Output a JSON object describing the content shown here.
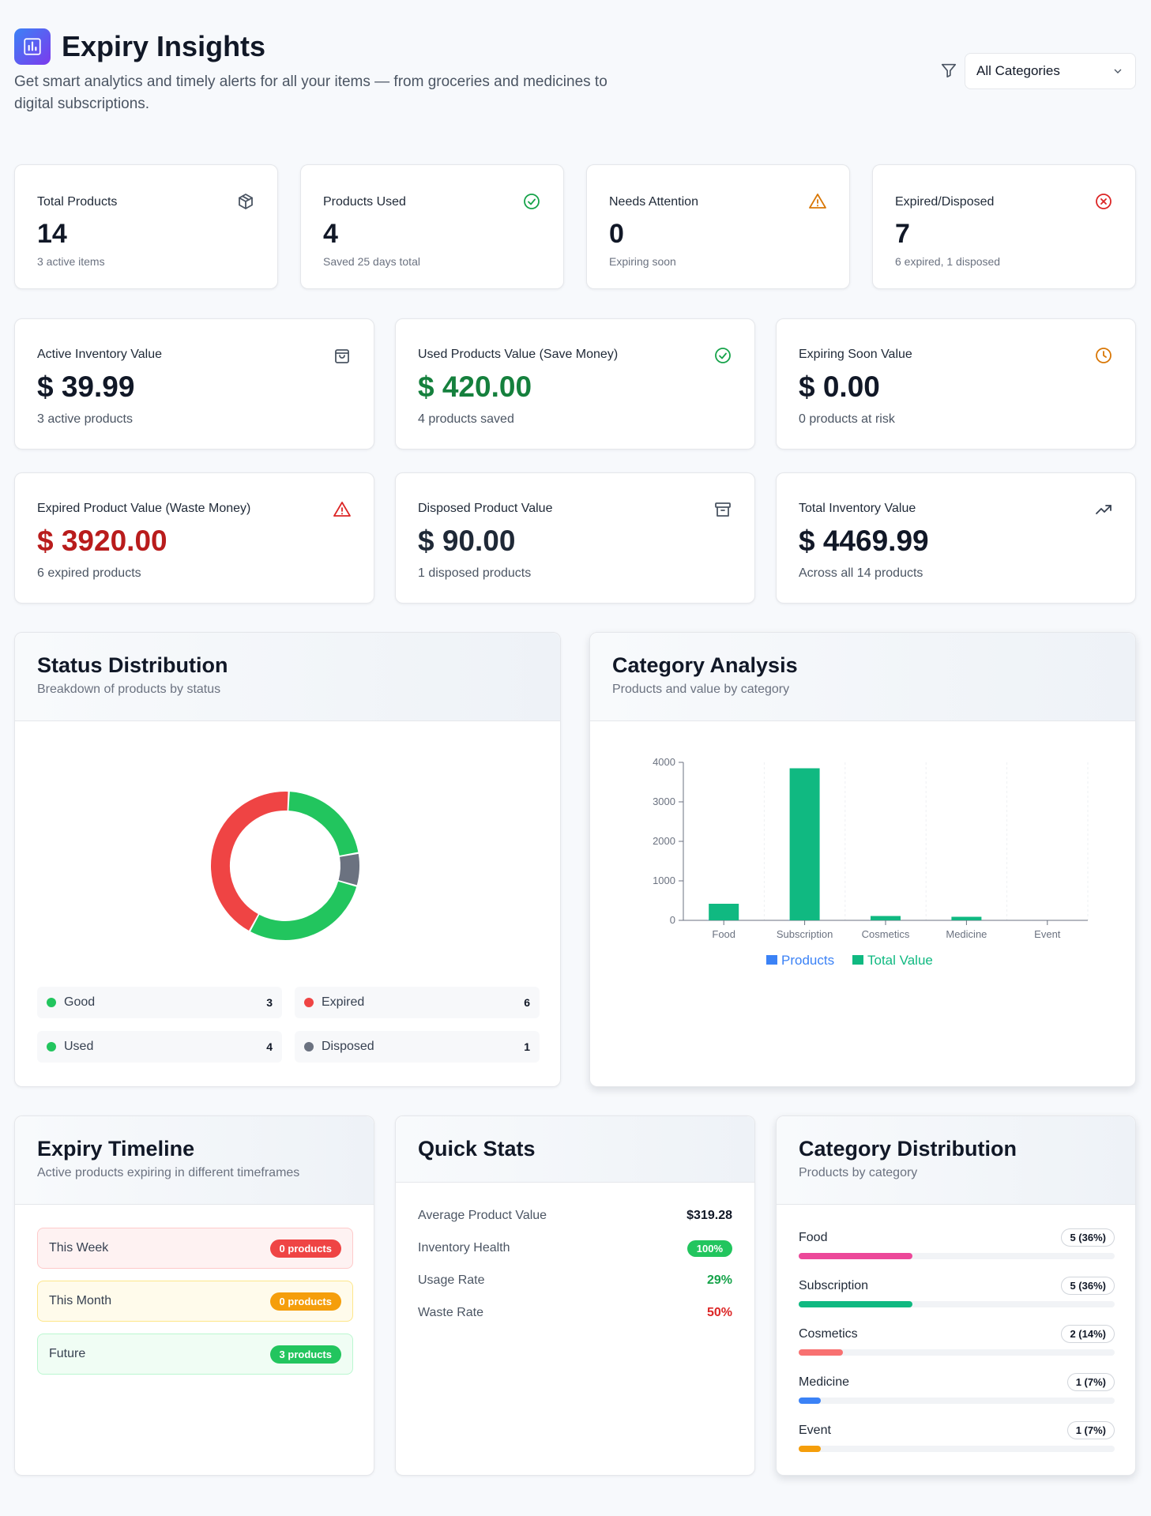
{
  "header": {
    "title": "Expiry Insights",
    "subtitle": "Get smart analytics and timely alerts for all your items — from groceries and medicines to digital subscriptions.",
    "filter": {
      "selected": "All Categories"
    }
  },
  "stats": [
    {
      "label": "Total Products",
      "value": "14",
      "sub": "3 active items",
      "icon": "cube-icon",
      "color": "#4b5563"
    },
    {
      "label": "Products Used",
      "value": "4",
      "sub": "Saved 25 days total",
      "icon": "check-circle-icon",
      "color": "#16a34a"
    },
    {
      "label": "Needs Attention",
      "value": "0",
      "sub": "Expiring soon",
      "icon": "warning-icon",
      "color": "#d97706"
    },
    {
      "label": "Expired/Disposed",
      "value": "7",
      "sub": "6 expired, 1 disposed",
      "icon": "x-circle-icon",
      "color": "#dc2626"
    }
  ],
  "values": [
    {
      "label": "Active Inventory Value",
      "value": "$ 39.99",
      "sub": "3 active products",
      "icon": "bag-icon",
      "color": "#111827",
      "iconColor": "#4b5563"
    },
    {
      "label": "Used Products Value (Save Money)",
      "value": "$ 420.00",
      "sub": "4 products saved",
      "icon": "check-circle-icon",
      "color": "#15803d",
      "iconColor": "#16a34a"
    },
    {
      "label": "Expiring Soon Value",
      "value": "$ 0.00",
      "sub": "0 products at risk",
      "icon": "clock-icon",
      "color": "#111827",
      "iconColor": "#d97706"
    },
    {
      "label": "Expired Product Value (Waste Money)",
      "value": "$ 3920.00",
      "sub": "6 expired products",
      "icon": "alert-triangle-icon",
      "color": "#b91c1c",
      "iconColor": "#dc2626"
    },
    {
      "label": "Disposed Product Value",
      "value": "$ 90.00",
      "sub": "1 disposed products",
      "icon": "archive-icon",
      "color": "#1f2937",
      "iconColor": "#4b5563"
    },
    {
      "label": "Total Inventory Value",
      "value": "$ 4469.99",
      "sub": "Across all 14 products",
      "icon": "trending-up-icon",
      "color": "#111827",
      "iconColor": "#374151"
    }
  ],
  "status": {
    "title": "Status Distribution",
    "subtitle": "Breakdown of products by status",
    "items": [
      {
        "label": "Good",
        "count": 3,
        "color": "#22c55e"
      },
      {
        "label": "Expired",
        "count": 6,
        "color": "#ef4444"
      },
      {
        "label": "Used",
        "count": 4,
        "color": "#22c55e"
      },
      {
        "label": "Disposed",
        "count": 1,
        "color": "#6b7280"
      }
    ]
  },
  "category": {
    "title": "Category Analysis",
    "subtitle": "Products and value by category"
  },
  "chart_data": {
    "type": "bar",
    "categories": [
      "Food",
      "Subscription",
      "Cosmetics",
      "Medicine",
      "Event"
    ],
    "series": [
      {
        "name": "Products",
        "values": [
          5,
          5,
          2,
          1,
          1
        ],
        "color": "#3b82f6"
      },
      {
        "name": "Total Value",
        "values": [
          420,
          3850,
          110,
          90,
          0
        ],
        "color": "#10b981"
      }
    ],
    "ylim": [
      0,
      4000
    ],
    "yticks": [
      0,
      1000,
      2000,
      3000,
      4000
    ],
    "legend": "bottom-center",
    "grid": true
  },
  "timeline": {
    "title": "Expiry Timeline",
    "subtitle": "Active products expiring in different timeframes",
    "rows": [
      {
        "label": "This Week",
        "badge": "0 products",
        "bg": "#fef2f2",
        "border": "#fecaca",
        "badgeColor": "#ef4444"
      },
      {
        "label": "This Month",
        "badge": "0 products",
        "bg": "#fffbeb",
        "border": "#fde68a",
        "badgeColor": "#f59e0b"
      },
      {
        "label": "Future",
        "badge": "3 products",
        "bg": "#f0fdf4",
        "border": "#bbf7d0",
        "badgeColor": "#22c55e"
      }
    ]
  },
  "quick": {
    "title": "Quick Stats",
    "rows": [
      {
        "label": "Average Product Value",
        "value": "$319.28",
        "color": "#111827"
      },
      {
        "label": "Inventory Health",
        "value": "100%",
        "color": "#ffffff",
        "pill": "#22c55e"
      },
      {
        "label": "Usage Rate",
        "value": "29%",
        "color": "#16a34a"
      },
      {
        "label": "Waste Rate",
        "value": "50%",
        "color": "#dc2626"
      }
    ]
  },
  "catdist": {
    "title": "Category Distribution",
    "subtitle": "Products by category",
    "items": [
      {
        "name": "Food",
        "pill": "5 (36%)",
        "pct": 36,
        "color": "#ec4899"
      },
      {
        "name": "Subscription",
        "pill": "5 (36%)",
        "pct": 36,
        "color": "#10b981"
      },
      {
        "name": "Cosmetics",
        "pill": "2 (14%)",
        "pct": 14,
        "color": "#f87171"
      },
      {
        "name": "Medicine",
        "pill": "1 (7%)",
        "pct": 7,
        "color": "#3b82f6"
      },
      {
        "name": "Event",
        "pill": "1 (7%)",
        "pct": 7,
        "color": "#f59e0b"
      }
    ]
  }
}
